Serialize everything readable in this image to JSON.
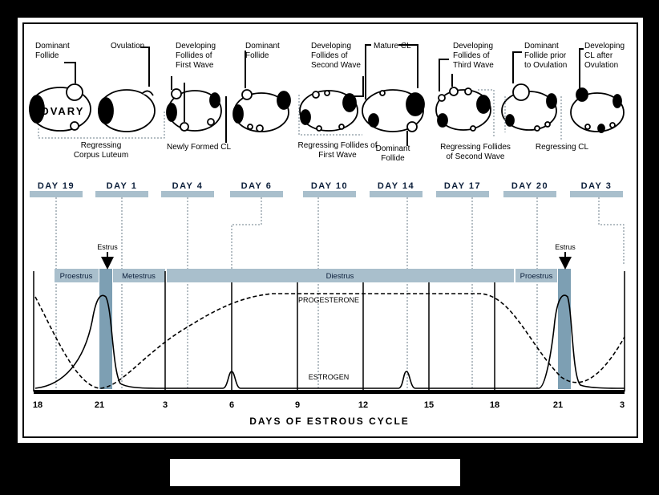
{
  "ovary_label": "OVARY",
  "top_labels": [
    "Dominant\nFollide",
    "Ovulation",
    "Developing\nFollides of\nFirst Wave",
    "Dominant\nFollide",
    "Developing\nFollides of\nSecond Wave",
    "Mature CL",
    "Developing\nFollides of\nThird Wave",
    "Dominant\nFollide prior\nto Ovulation",
    "Developing\nCL after\nOvulation"
  ],
  "bottom_labels": [
    "Regressing\nCorpus Luteum",
    "Newly Formed CL",
    "Regressing Follides of\nFirst Wave",
    "Dominant\nFollide",
    "Regressing Follides\nof Second Wave",
    "Regressing CL"
  ],
  "day_labels": [
    "DAY 19",
    "DAY 1",
    "DAY 4",
    "DAY 6",
    "DAY 10",
    "DAY 14",
    "DAY 17",
    "DAY 20",
    "DAY 3"
  ],
  "phases": [
    "Proestrus",
    "Metestrus",
    "Diestrus",
    "Proestrus"
  ],
  "estrus_label": "Estrus",
  "progesterone_label": "PROGESTERONE",
  "estrogen_label": "ESTROGEN",
  "axis_ticks": [
    "18",
    "21",
    "3",
    "6",
    "9",
    "12",
    "15",
    "18",
    "21",
    "3"
  ],
  "axis_title": "DAYS OF ESTROUS CYCLE",
  "colors": {
    "band": "#a9bfcc",
    "estrus_band": "#7d9fb3",
    "frame": "#000000",
    "text": "#0b1e3a"
  }
}
